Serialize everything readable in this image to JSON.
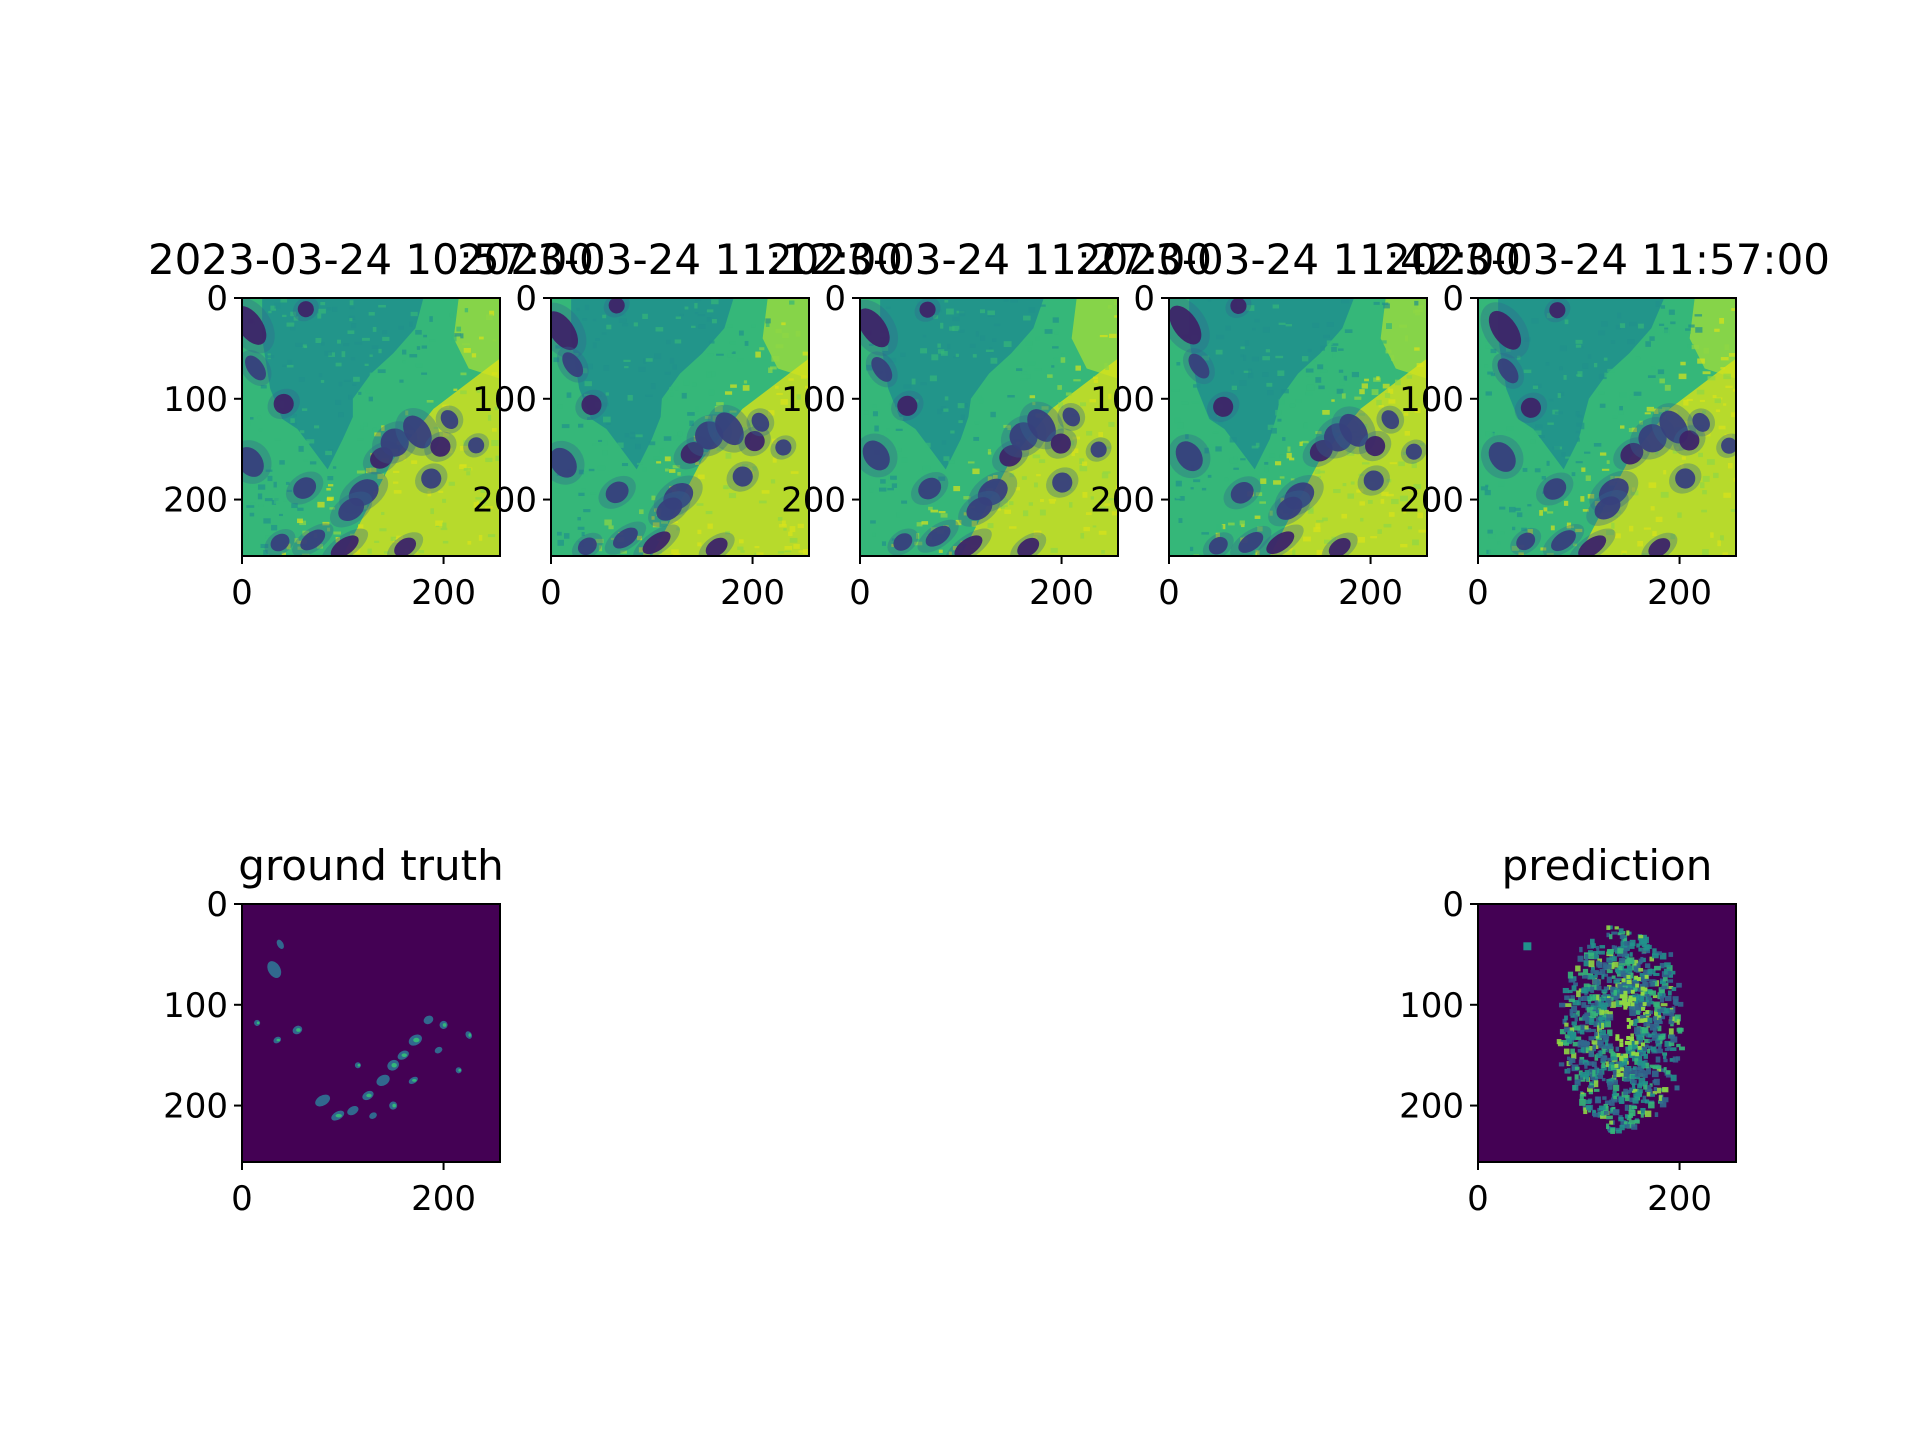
{
  "chart_data": [
    {
      "type": "heatmap",
      "panel": "input-1",
      "title": "2023-03-24 10:57:00",
      "colormap": "viridis",
      "image_size": [
        256,
        256
      ],
      "xticks": [
        0,
        200
      ],
      "yticks": [
        0,
        100,
        200
      ],
      "xlim": [
        0,
        256
      ],
      "ylim": [
        256,
        0
      ],
      "grid": false
    },
    {
      "type": "heatmap",
      "panel": "input-2",
      "title": "2023-03-24 11:12:00",
      "colormap": "viridis",
      "image_size": [
        256,
        256
      ],
      "xticks": [
        0,
        200
      ],
      "yticks": [
        0,
        100,
        200
      ],
      "xlim": [
        0,
        256
      ],
      "ylim": [
        256,
        0
      ],
      "grid": false
    },
    {
      "type": "heatmap",
      "panel": "input-3",
      "title": "2023-03-24 11:27:00",
      "colormap": "viridis",
      "image_size": [
        256,
        256
      ],
      "xticks": [
        0,
        200
      ],
      "yticks": [
        0,
        100,
        200
      ],
      "xlim": [
        0,
        256
      ],
      "ylim": [
        256,
        0
      ],
      "grid": false
    },
    {
      "type": "heatmap",
      "panel": "input-4",
      "title": "2023-03-24 11:42:00",
      "colormap": "viridis",
      "image_size": [
        256,
        256
      ],
      "xticks": [
        0,
        200
      ],
      "yticks": [
        0,
        100,
        200
      ],
      "xlim": [
        0,
        256
      ],
      "ylim": [
        256,
        0
      ],
      "grid": false
    },
    {
      "type": "heatmap",
      "panel": "input-5",
      "title": "2023-03-24 11:57:00",
      "colormap": "viridis",
      "image_size": [
        256,
        256
      ],
      "xticks": [
        0,
        200
      ],
      "yticks": [
        0,
        100,
        200
      ],
      "xlim": [
        0,
        256
      ],
      "ylim": [
        256,
        0
      ],
      "grid": false
    },
    {
      "type": "heatmap",
      "panel": "ground-truth",
      "title": "ground truth",
      "colormap": "viridis",
      "image_size": [
        256,
        256
      ],
      "xticks": [
        0,
        200
      ],
      "yticks": [
        0,
        100,
        200
      ],
      "xlim": [
        0,
        256
      ],
      "ylim": [
        256,
        0
      ],
      "grid": false
    },
    {
      "type": "heatmap",
      "panel": "prediction",
      "title": "prediction",
      "colormap": "viridis",
      "image_size": [
        256,
        256
      ],
      "xticks": [
        0,
        200
      ],
      "yticks": [
        0,
        100,
        200
      ],
      "xlim": [
        0,
        256
      ],
      "ylim": [
        256,
        0
      ],
      "grid": false
    }
  ],
  "colors": {
    "viridis_dark": "#440154",
    "viridis_purple": "#3b2c73",
    "viridis_blue": "#31688e",
    "viridis_teal": "#21918c",
    "viridis_green": "#35b779",
    "viridis_lime": "#8fd744",
    "viridis_yellow": "#d8e219",
    "axes": "#000000",
    "background": "#ffffff"
  }
}
